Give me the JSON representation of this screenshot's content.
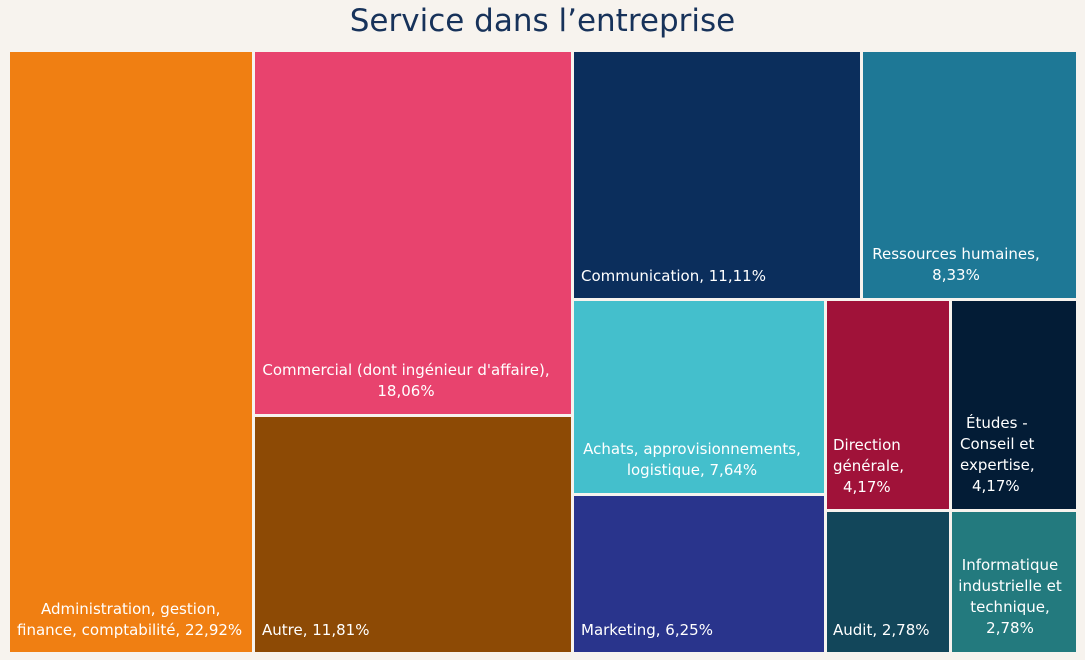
{
  "chart_data": {
    "type": "treemap",
    "title": "Service dans l’entreprise",
    "items": [
      {
        "name": "Administration, gestion, finance, comptabilité",
        "label_lines": [
          "Administration, gestion,",
          "finance, comptabilité, 22,92%"
        ],
        "value": 22.92,
        "color": "#f07f12"
      },
      {
        "name": "Commercial (dont ingénieur d'affaire)",
        "label_lines": [
          "Commercial (dont ingénieur d'affaire),",
          "18,06%"
        ],
        "value": 18.06,
        "color": "#e8436e"
      },
      {
        "name": "Autre",
        "label_lines": [
          "Autre, 11,81%"
        ],
        "value": 11.81,
        "color": "#8d4a05"
      },
      {
        "name": "Communication",
        "label_lines": [
          "Communication, 11,11%"
        ],
        "value": 11.11,
        "color": "#0b2e5c"
      },
      {
        "name": "Ressources humaines",
        "label_lines": [
          "Ressources humaines,",
          "8,33%"
        ],
        "value": 8.33,
        "color": "#1e7896"
      },
      {
        "name": "Achats, approvisionnements, logistique",
        "label_lines": [
          "Achats, approvisionnements,",
          "logistique, 7,64%"
        ],
        "value": 7.64,
        "color": "#44bfcc"
      },
      {
        "name": "Marketing",
        "label_lines": [
          "Marketing, 6,25%"
        ],
        "value": 6.25,
        "color": "#29348c"
      },
      {
        "name": "Direction générale",
        "label_lines": [
          "Direction",
          "générale,",
          "4,17%"
        ],
        "value": 4.17,
        "color": "#a01239"
      },
      {
        "name": "Études - Conseil et expertise",
        "label_lines": [
          "Études -",
          "Conseil et",
          "expertise,",
          "4,17%"
        ],
        "value": 4.17,
        "color": "#031c36"
      },
      {
        "name": "Audit",
        "label_lines": [
          "Audit, 2,78%"
        ],
        "value": 2.78,
        "color": "#12465a"
      },
      {
        "name": "Informatique industrielle et technique",
        "label_lines": [
          "Informatique",
          "industrielle et",
          "technique,",
          "2,78%"
        ],
        "value": 2.78,
        "color": "#237a7e"
      }
    ]
  }
}
